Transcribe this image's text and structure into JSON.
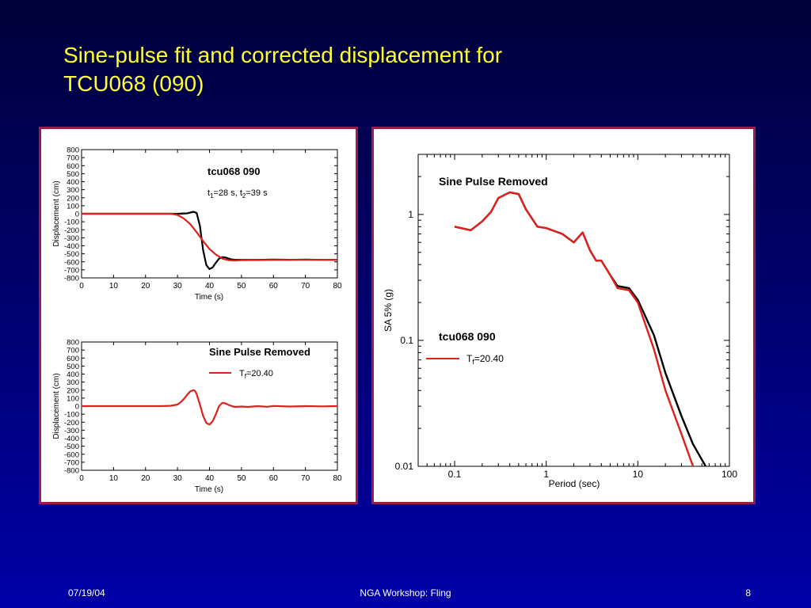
{
  "slide": {
    "title_line1": "Sine-pulse fit and corrected displacement for",
    "title_line2": "TCU068 (090)",
    "footer_date": "07/19/04",
    "footer_center": "NGA Workshop: Fling",
    "footer_page": "8"
  },
  "colors": {
    "title": "#ffff33",
    "panel_border": "#9a1a4a",
    "black_series": "#000000",
    "red_series": "#e0201c"
  },
  "chart_data": [
    {
      "type": "line",
      "panel": "top-left",
      "title": "tcu068 090",
      "annotation": {
        "t1_pre": "t",
        "t1_sub": "1",
        "t1_val": "=28 s, ",
        "t2_pre": "t",
        "t2_sub": "2",
        "t2_val": "=39 s"
      },
      "xlabel": "Time (s)",
      "ylabel": "Displacement (cm)",
      "xlim": [
        0,
        80
      ],
      "ylim": [
        -800,
        800
      ],
      "xticks": [
        0,
        10,
        20,
        30,
        40,
        50,
        60,
        70,
        80
      ],
      "yticks": [
        800,
        700,
        600,
        500,
        400,
        300,
        200,
        100,
        0,
        -100,
        -200,
        -300,
        -400,
        -500,
        -600,
        -700,
        -800
      ],
      "grid": false,
      "series": [
        {
          "color": "#000000",
          "x": [
            0,
            20,
            30,
            33,
            34,
            35,
            36,
            37,
            38,
            39,
            40,
            41,
            42,
            43,
            44,
            45,
            46,
            47,
            48,
            50,
            55,
            60,
            65,
            70,
            75,
            80
          ],
          "y": [
            0,
            0,
            0,
            5,
            15,
            25,
            10,
            -150,
            -450,
            -640,
            -690,
            -670,
            -610,
            -560,
            -540,
            -545,
            -560,
            -570,
            -575,
            -575,
            -575,
            -572,
            -574,
            -572,
            -575,
            -575
          ]
        },
        {
          "color": "#e0201c",
          "x": [
            0,
            20,
            28,
            30,
            32,
            34,
            36,
            38,
            40,
            42,
            44,
            46,
            48,
            50,
            55,
            60,
            65,
            70,
            75,
            80
          ],
          "y": [
            0,
            0,
            0,
            -15,
            -60,
            -130,
            -230,
            -340,
            -440,
            -510,
            -560,
            -580,
            -585,
            -580,
            -578,
            -576,
            -575,
            -575,
            -575,
            -575
          ]
        }
      ]
    },
    {
      "type": "line",
      "panel": "bottom-left",
      "title": "Sine Pulse Removed",
      "legend": [
        {
          "pre": "T",
          "sub": "f",
          "val": "=20.40",
          "color": "#e0201c"
        }
      ],
      "xlabel": "Time (s)",
      "ylabel": "Displacement (cm)",
      "xlim": [
        0,
        80
      ],
      "ylim": [
        -800,
        800
      ],
      "xticks": [
        0,
        10,
        20,
        30,
        40,
        50,
        60,
        70,
        80
      ],
      "yticks": [
        800,
        700,
        600,
        500,
        400,
        300,
        200,
        100,
        0,
        -100,
        -200,
        -300,
        -400,
        -500,
        -600,
        -700,
        -800
      ],
      "grid": false,
      "series": [
        {
          "color": "#e0201c",
          "x": [
            0,
            25,
            28,
            30,
            31,
            32,
            33,
            34,
            35,
            35.5,
            36,
            37,
            38,
            39,
            40,
            41,
            42,
            43,
            44,
            45,
            46,
            47,
            48,
            50,
            52,
            55,
            58,
            60,
            65,
            70,
            75,
            80
          ],
          "y": [
            0,
            0,
            5,
            20,
            50,
            90,
            140,
            185,
            200,
            190,
            150,
            20,
            -120,
            -210,
            -230,
            -190,
            -100,
            0,
            40,
            35,
            15,
            0,
            -10,
            -5,
            -10,
            0,
            -8,
            2,
            -5,
            0,
            -3,
            0
          ]
        }
      ]
    },
    {
      "type": "line",
      "panel": "right",
      "title": "Sine Pulse Removed",
      "label": "tcu068 090",
      "legend": [
        {
          "pre": "T",
          "sub": "f",
          "val": "=20.40",
          "color": "#e0201c"
        }
      ],
      "xlabel": "Period (sec)",
      "ylabel": "SA 5% (g)",
      "xscale": "log",
      "yscale": "log",
      "xlim": [
        0.04,
        100
      ],
      "ylim": [
        0.01,
        3
      ],
      "xticks": [
        0.1,
        1,
        10,
        100
      ],
      "xtick_labels": [
        "0.1",
        "1",
        "10",
        "100"
      ],
      "yticks": [
        1,
        0.1,
        0.01
      ],
      "ytick_labels": [
        "1",
        "0.1",
        "0.01"
      ],
      "grid": false,
      "series": [
        {
          "color": "#000000",
          "x": [
            0.1,
            0.15,
            0.2,
            0.25,
            0.3,
            0.4,
            0.5,
            0.6,
            0.8,
            1.0,
            1.5,
            2.0,
            2.5,
            3.0,
            3.5,
            4.0,
            5.0,
            6.0,
            8.0,
            10,
            15,
            20,
            30,
            40,
            55
          ],
          "y": [
            0.8,
            0.75,
            0.88,
            1.05,
            1.35,
            1.5,
            1.45,
            1.1,
            0.8,
            0.78,
            0.7,
            0.6,
            0.72,
            0.52,
            0.43,
            0.43,
            0.33,
            0.27,
            0.26,
            0.21,
            0.11,
            0.055,
            0.025,
            0.015,
            0.01
          ]
        },
        {
          "color": "#e0201c",
          "x": [
            0.1,
            0.15,
            0.2,
            0.25,
            0.3,
            0.4,
            0.5,
            0.6,
            0.8,
            1.0,
            1.5,
            2.0,
            2.5,
            3.0,
            3.5,
            4.0,
            5.0,
            6.0,
            8.0,
            10,
            15,
            20,
            30,
            40
          ],
          "y": [
            0.8,
            0.75,
            0.88,
            1.05,
            1.35,
            1.5,
            1.45,
            1.1,
            0.8,
            0.78,
            0.7,
            0.6,
            0.72,
            0.52,
            0.43,
            0.43,
            0.33,
            0.26,
            0.25,
            0.2,
            0.085,
            0.04,
            0.018,
            0.01
          ]
        }
      ]
    }
  ]
}
